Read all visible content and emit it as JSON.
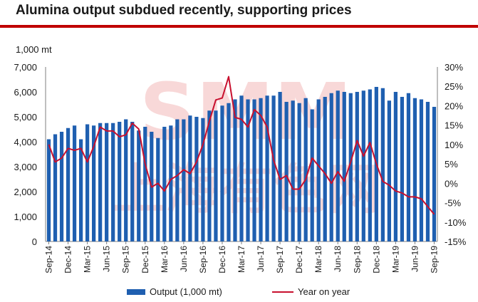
{
  "title": "Alumina output subdued recently, supporting prices",
  "colors": {
    "bar": "#1f5fb0",
    "line": "#c8102e",
    "rule": "#c00000",
    "watermark": "#f2b8b8"
  },
  "watermark": "SMM 上海有色网",
  "chart_data": {
    "type": "bar+line",
    "y_left_unit": "1,000 mt",
    "y_left_range": [
      0,
      7000
    ],
    "y_left_ticks": [
      "0",
      "1,000",
      "2,000",
      "3,000",
      "4,000",
      "5,000",
      "6,000",
      "7,000"
    ],
    "y_right_range": [
      -15,
      30
    ],
    "y_right_ticks": [
      "-15%",
      "-10%",
      "-5%",
      "0%",
      "5%",
      "10%",
      "15%",
      "20%",
      "25%",
      "30%"
    ],
    "x_tick_labels": [
      "Sep-14",
      "Dec-14",
      "Mar-15",
      "Jun-15",
      "Sep-15",
      "Dec-15",
      "Mar-16",
      "Jun-16",
      "Sep-16",
      "Dec-16",
      "Mar-17",
      "Jun-17",
      "Sep-17",
      "Dec-17",
      "Mar-18",
      "Jun-18",
      "Sep-18",
      "Dec-18",
      "Mar-19",
      "Jun-19",
      "Sep-19"
    ],
    "categories": [
      "Sep-14",
      "Oct-14",
      "Nov-14",
      "Dec-14",
      "Jan-15",
      "Feb-15",
      "Mar-15",
      "Apr-15",
      "May-15",
      "Jun-15",
      "Jul-15",
      "Aug-15",
      "Sep-15",
      "Oct-15",
      "Nov-15",
      "Dec-15",
      "Jan-16",
      "Feb-16",
      "Mar-16",
      "Apr-16",
      "May-16",
      "Jun-16",
      "Jul-16",
      "Aug-16",
      "Sep-16",
      "Oct-16",
      "Nov-16",
      "Dec-16",
      "Jan-17",
      "Feb-17",
      "Mar-17",
      "Apr-17",
      "May-17",
      "Jun-17",
      "Jul-17",
      "Aug-17",
      "Sep-17",
      "Oct-17",
      "Nov-17",
      "Dec-17",
      "Jan-18",
      "Feb-18",
      "Mar-18",
      "Apr-18",
      "May-18",
      "Jun-18",
      "Jul-18",
      "Aug-18",
      "Sep-18",
      "Oct-18",
      "Nov-18",
      "Dec-18",
      "Jan-19",
      "Feb-19",
      "Mar-19",
      "Apr-19",
      "May-19",
      "Jun-19",
      "Jul-19",
      "Aug-19",
      "Sep-19"
    ],
    "series": [
      {
        "name": "Output (1,000 mt)",
        "type": "bar",
        "axis": "left",
        "values": [
          4100,
          4300,
          4400,
          4550,
          4650,
          4100,
          4700,
          4650,
          4750,
          4750,
          4750,
          4800,
          4900,
          4800,
          4450,
          4600,
          4400,
          4150,
          4600,
          4650,
          4900,
          4900,
          5050,
          5000,
          4950,
          5250,
          5250,
          5450,
          5550,
          5700,
          5850,
          5700,
          5700,
          5750,
          5850,
          5850,
          6000,
          5600,
          5650,
          5550,
          5750,
          5300,
          5700,
          5800,
          5950,
          6050,
          6000,
          5950,
          6000,
          6050,
          6100,
          6200,
          6150,
          5650,
          6000,
          5800,
          5950,
          5750,
          5700,
          5600,
          5400
        ]
      },
      {
        "name": "Year on year",
        "type": "line",
        "axis": "right",
        "values": [
          10,
          5.5,
          6.5,
          9,
          8.5,
          9,
          5.5,
          9.5,
          14.5,
          13.5,
          13.5,
          12,
          12.5,
          15.5,
          14,
          5,
          -1,
          0,
          -2,
          1,
          2,
          3.5,
          2.5,
          5.5,
          10,
          16,
          21.5,
          22,
          27.5,
          17,
          16.5,
          14.5,
          19,
          17.5,
          14.5,
          6,
          1,
          2,
          -1.5,
          -1.5,
          1,
          6.5,
          4.5,
          2.5,
          0,
          3,
          0.5,
          5.5,
          11,
          7,
          10.5,
          5,
          0.5,
          -0.5,
          -2,
          -2.5,
          -3.5,
          -3.5,
          -4,
          -6,
          -8
        ]
      }
    ],
    "legend": [
      "Output (1,000 mt)",
      "Year on year"
    ],
    "legend_position": "bottom"
  }
}
